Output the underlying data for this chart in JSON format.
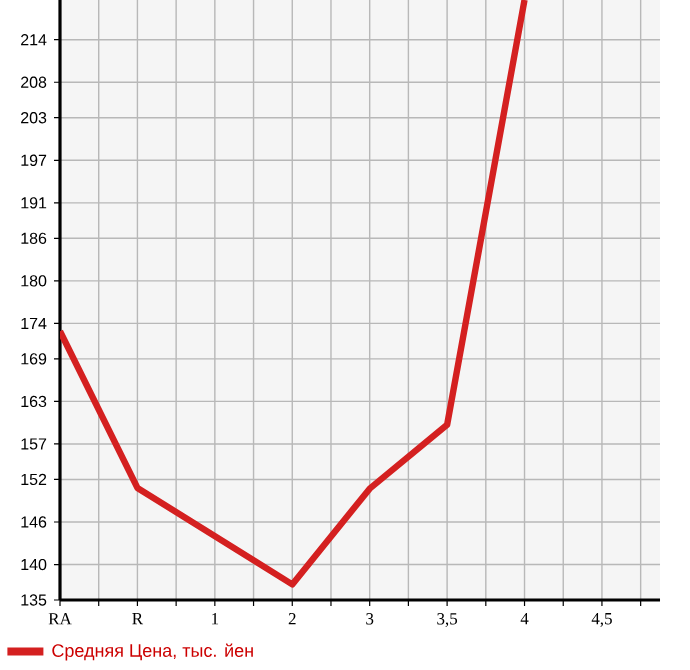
{
  "chart_data": {
    "type": "line",
    "categories": [
      "RA",
      "R",
      "1",
      "2",
      "3",
      "3,5",
      "4",
      "4,5"
    ],
    "series": [
      {
        "name": "Средняя Цена, тыс. йен",
        "color": "#d42020",
        "values": [
          172.9,
          150.8,
          null,
          137.2,
          150.7,
          159.7,
          219.6,
          null
        ]
      }
    ],
    "ylim": [
      135,
      219.6
    ],
    "yticks": [
      135,
      140,
      146,
      152,
      157,
      163,
      169,
      174,
      180,
      186,
      191,
      197,
      203,
      208,
      214
    ],
    "grid": true,
    "legend": "bottom",
    "marker": "none",
    "line_style": "solid"
  }
}
